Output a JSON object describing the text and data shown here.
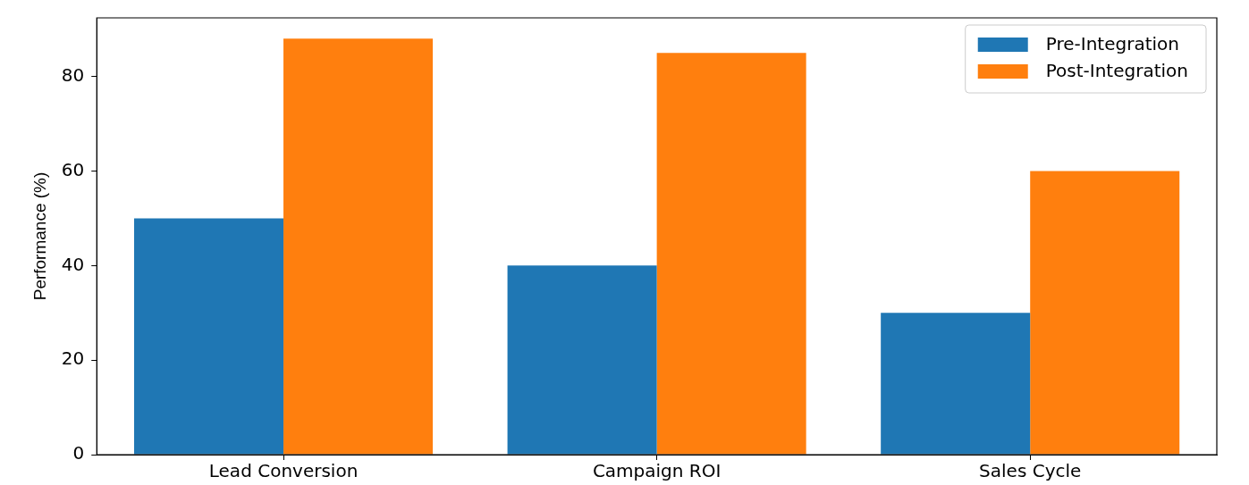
{
  "chart_data": {
    "type": "bar",
    "ylabel": "Performance (%)",
    "categories": [
      "Lead Conversion",
      "Campaign ROI",
      "Sales Cycle"
    ],
    "series": [
      {
        "name": "Pre-Integration",
        "color": "#1f77b4",
        "values": [
          50,
          40,
          30
        ]
      },
      {
        "name": "Post-Integration",
        "color": "#ff7f0e",
        "values": [
          88,
          85,
          60
        ]
      }
    ],
    "ylim": [
      0,
      92.4
    ],
    "yticks": [
      0,
      20,
      40,
      60,
      80
    ],
    "grid": false,
    "legend": "top right"
  }
}
